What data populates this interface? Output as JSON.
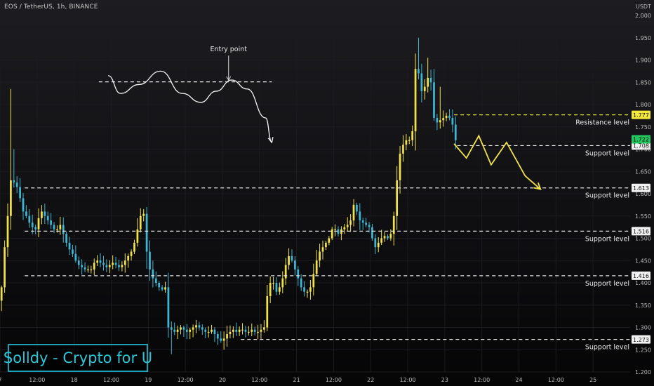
{
  "header": {
    "symbol": "EOS / TetherUS, 1h, BINANCE",
    "currency": "USDT"
  },
  "watermark": "Solldy - Crypto for U",
  "colors": {
    "background": "#0b0b0d",
    "up": "#f2e24a",
    "down": "#3fb6d3",
    "grid": "#1c1c20",
    "level_line": "#e6e6e6",
    "resistance_line": "#e8e03a",
    "projection": "#f2e24a",
    "last_price_tag": "#22c55e"
  },
  "chart_data": {
    "type": "candlestick",
    "y_axis": {
      "min": 1.2,
      "max": 2.0,
      "ticks": [
        "2.000",
        "1.950",
        "1.900",
        "1.850",
        "1.800",
        "1.750",
        "1.700",
        "1.650",
        "1.600",
        "1.550",
        "1.500",
        "1.450",
        "1.400",
        "1.350",
        "1.300",
        "1.250",
        "1.200"
      ]
    },
    "x_axis": {
      "min": 0,
      "max": 204,
      "ticks": [
        {
          "t": 0,
          "label": "7"
        },
        {
          "t": 12,
          "label": "12:00"
        },
        {
          "t": 24,
          "label": "18"
        },
        {
          "t": 36,
          "label": "12:00"
        },
        {
          "t": 48,
          "label": "19"
        },
        {
          "t": 60,
          "label": "12:00"
        },
        {
          "t": 72,
          "label": "20"
        },
        {
          "t": 84,
          "label": "12:00"
        },
        {
          "t": 96,
          "label": "21"
        },
        {
          "t": 108,
          "label": "12:00"
        },
        {
          "t": 120,
          "label": "22"
        },
        {
          "t": 132,
          "label": "12:00"
        },
        {
          "t": 144,
          "label": "23"
        },
        {
          "t": 156,
          "label": "12:00"
        },
        {
          "t": 168,
          "label": "24"
        },
        {
          "t": 180,
          "label": "12:00"
        },
        {
          "t": 192,
          "label": "25"
        }
      ]
    },
    "anchors": [
      [
        0,
        1.36
      ],
      [
        1,
        1.39
      ],
      [
        2,
        1.48
      ],
      [
        3,
        1.55
      ],
      [
        4,
        1.63
      ],
      [
        5,
        1.625
      ],
      [
        6,
        1.615
      ],
      [
        7,
        1.59
      ],
      [
        8,
        1.56
      ],
      [
        9,
        1.55
      ],
      [
        10,
        1.535
      ],
      [
        11,
        1.525
      ],
      [
        12,
        1.52
      ],
      [
        13,
        1.545
      ],
      [
        14,
        1.56
      ],
      [
        15,
        1.55
      ],
      [
        16,
        1.54
      ],
      [
        17,
        1.53
      ],
      [
        18,
        1.52
      ],
      [
        19,
        1.52
      ],
      [
        20,
        1.53
      ],
      [
        21,
        1.51
      ],
      [
        22,
        1.49
      ],
      [
        23,
        1.475
      ],
      [
        24,
        1.465
      ],
      [
        25,
        1.45
      ],
      [
        26,
        1.44
      ],
      [
        27,
        1.435
      ],
      [
        28,
        1.43
      ],
      [
        29,
        1.43
      ],
      [
        30,
        1.43
      ],
      [
        31,
        1.445
      ],
      [
        32,
        1.45
      ],
      [
        33,
        1.445
      ],
      [
        34,
        1.44
      ],
      [
        35,
        1.435
      ],
      [
        36,
        1.44
      ],
      [
        37,
        1.445
      ],
      [
        38,
        1.44
      ],
      [
        39,
        1.435
      ],
      [
        40,
        1.44
      ],
      [
        41,
        1.45
      ],
      [
        42,
        1.46
      ],
      [
        43,
        1.47
      ],
      [
        44,
        1.49
      ],
      [
        45,
        1.52
      ],
      [
        46,
        1.55
      ],
      [
        47,
        1.555
      ],
      [
        48,
        1.47
      ],
      [
        49,
        1.43
      ],
      [
        50,
        1.41
      ],
      [
        51,
        1.4
      ],
      [
        52,
        1.39
      ],
      [
        53,
        1.385
      ],
      [
        54,
        1.39
      ],
      [
        55,
        1.3
      ],
      [
        56,
        1.295
      ],
      [
        57,
        1.29
      ],
      [
        58,
        1.295
      ],
      [
        59,
        1.3
      ],
      [
        60,
        1.295
      ],
      [
        61,
        1.29
      ],
      [
        62,
        1.295
      ],
      [
        63,
        1.3
      ],
      [
        64,
        1.305
      ],
      [
        65,
        1.3
      ],
      [
        66,
        1.295
      ],
      [
        67,
        1.29
      ],
      [
        68,
        1.29
      ],
      [
        69,
        1.295
      ],
      [
        70,
        1.285
      ],
      [
        71,
        1.275
      ],
      [
        72,
        1.27
      ],
      [
        73,
        1.275
      ],
      [
        74,
        1.285
      ],
      [
        75,
        1.29
      ],
      [
        76,
        1.295
      ],
      [
        77,
        1.29
      ],
      [
        78,
        1.295
      ],
      [
        79,
        1.295
      ],
      [
        80,
        1.29
      ],
      [
        81,
        1.29
      ],
      [
        82,
        1.295
      ],
      [
        83,
        1.29
      ],
      [
        84,
        1.29
      ],
      [
        85,
        1.295
      ],
      [
        86,
        1.3
      ],
      [
        87,
        1.37
      ],
      [
        88,
        1.4
      ],
      [
        89,
        1.4
      ],
      [
        90,
        1.38
      ],
      [
        91,
        1.39
      ],
      [
        92,
        1.41
      ],
      [
        93,
        1.44
      ],
      [
        94,
        1.46
      ],
      [
        95,
        1.45
      ],
      [
        96,
        1.43
      ],
      [
        97,
        1.41
      ],
      [
        98,
        1.39
      ],
      [
        99,
        1.38
      ],
      [
        100,
        1.38
      ],
      [
        101,
        1.39
      ],
      [
        102,
        1.42
      ],
      [
        103,
        1.45
      ],
      [
        104,
        1.47
      ],
      [
        105,
        1.48
      ],
      [
        106,
        1.49
      ],
      [
        107,
        1.5
      ],
      [
        108,
        1.52
      ],
      [
        109,
        1.52
      ],
      [
        110,
        1.51
      ],
      [
        111,
        1.52
      ],
      [
        112,
        1.525
      ],
      [
        113,
        1.53
      ],
      [
        114,
        1.54
      ],
      [
        115,
        1.575
      ],
      [
        116,
        1.56
      ],
      [
        117,
        1.54
      ],
      [
        118,
        1.535
      ],
      [
        119,
        1.53
      ],
      [
        120,
        1.525
      ],
      [
        121,
        1.5
      ],
      [
        122,
        1.48
      ],
      [
        123,
        1.49
      ],
      [
        124,
        1.5
      ],
      [
        125,
        1.505
      ],
      [
        126,
        1.5
      ],
      [
        127,
        1.51
      ],
      [
        128,
        1.55
      ],
      [
        129,
        1.63
      ],
      [
        130,
        1.69
      ],
      [
        131,
        1.71
      ],
      [
        132,
        1.72
      ],
      [
        133,
        1.72
      ],
      [
        134,
        1.74
      ],
      [
        135,
        1.88
      ],
      [
        136,
        1.87
      ],
      [
        137,
        1.83
      ],
      [
        138,
        1.84
      ],
      [
        139,
        1.86
      ],
      [
        140,
        1.85
      ],
      [
        141,
        1.77
      ],
      [
        142,
        1.76
      ],
      [
        143,
        1.765
      ],
      [
        144,
        1.77
      ],
      [
        145,
        1.775
      ],
      [
        146,
        1.77
      ],
      [
        147,
        1.755
      ],
      [
        148,
        1.72
      ]
    ],
    "levels": [
      {
        "value": 1.777,
        "tag": "1.777",
        "label": "Resistance level",
        "kind": "resistance"
      },
      {
        "value": 1.708,
        "tag": "1.708",
        "label": "Support level",
        "kind": "support"
      },
      {
        "value": 1.613,
        "tag": "1.613",
        "label": "Support level",
        "kind": "support"
      },
      {
        "value": 1.516,
        "tag": "1.516",
        "label": "Support level",
        "kind": "support"
      },
      {
        "value": 1.416,
        "tag": "1.416",
        "label": "Support level",
        "kind": "support"
      },
      {
        "value": 1.273,
        "tag": "1.273",
        "label": "Support level",
        "kind": "support"
      }
    ],
    "last_price": {
      "value": 1.722,
      "tag": "1.722"
    },
    "annotations": {
      "entry_point": "Entry point",
      "entry_line": {
        "t0": 32,
        "t1": 88,
        "value": 1.851
      },
      "example_curve": [
        [
          35,
          1.865
        ],
        [
          39,
          1.825
        ],
        [
          45,
          1.845
        ],
        [
          52,
          1.875
        ],
        [
          59,
          1.825
        ],
        [
          65,
          1.805
        ],
        [
          70,
          1.83
        ],
        [
          75,
          1.855
        ],
        [
          80,
          1.835
        ],
        [
          86,
          1.77
        ],
        [
          88,
          1.715
        ]
      ],
      "entry_arrow": {
        "t": 74,
        "from": 1.91,
        "to": 1.855
      },
      "projection": [
        [
          147,
          1.712
        ],
        [
          151,
          1.68
        ],
        [
          155,
          1.73
        ],
        [
          159,
          1.665
        ],
        [
          164,
          1.715
        ],
        [
          170,
          1.64
        ],
        [
          175,
          1.61
        ]
      ]
    }
  }
}
